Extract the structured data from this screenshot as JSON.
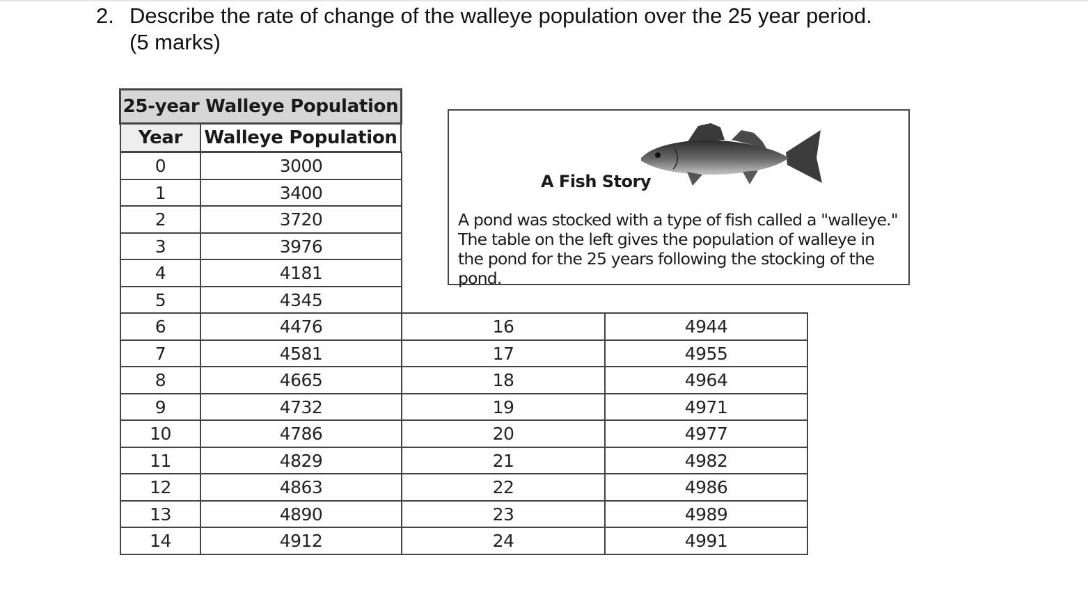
{
  "question": {
    "number": "2.",
    "text": "Describe the rate of change of the walleye population over the 25 year period.",
    "marks": "(5 marks)"
  },
  "table": {
    "title": "25-year Walleye Population",
    "col_year": "Year",
    "col_population": "Walleye Population",
    "left_rows": [
      {
        "year": "0",
        "population": "3000"
      },
      {
        "year": "1",
        "population": "3400"
      },
      {
        "year": "2",
        "population": "3720"
      },
      {
        "year": "3",
        "population": "3976"
      },
      {
        "year": "4",
        "population": "4181"
      },
      {
        "year": "5",
        "population": "4345"
      },
      {
        "year": "6",
        "population": "4476"
      },
      {
        "year": "7",
        "population": "4581"
      },
      {
        "year": "8",
        "population": "4665"
      },
      {
        "year": "9",
        "population": "4732"
      },
      {
        "year": "10",
        "population": "4786"
      },
      {
        "year": "11",
        "population": "4829"
      },
      {
        "year": "12",
        "population": "4863"
      },
      {
        "year": "13",
        "population": "4890"
      },
      {
        "year": "14",
        "population": "4912"
      }
    ],
    "right_rows": [
      {
        "year": "16",
        "population": "4944"
      },
      {
        "year": "17",
        "population": "4955"
      },
      {
        "year": "18",
        "population": "4964"
      },
      {
        "year": "19",
        "population": "4971"
      },
      {
        "year": "20",
        "population": "4977"
      },
      {
        "year": "21",
        "population": "4982"
      },
      {
        "year": "22",
        "population": "4986"
      },
      {
        "year": "23",
        "population": "4989"
      },
      {
        "year": "24",
        "population": "4991"
      }
    ]
  },
  "story": {
    "title": "A Fish Story",
    "text": "A pond was stocked with a type of fish called a \"walleye.\" The table on the left gives the population of walleye in the pond for the 25 years following the stocking of the pond."
  }
}
